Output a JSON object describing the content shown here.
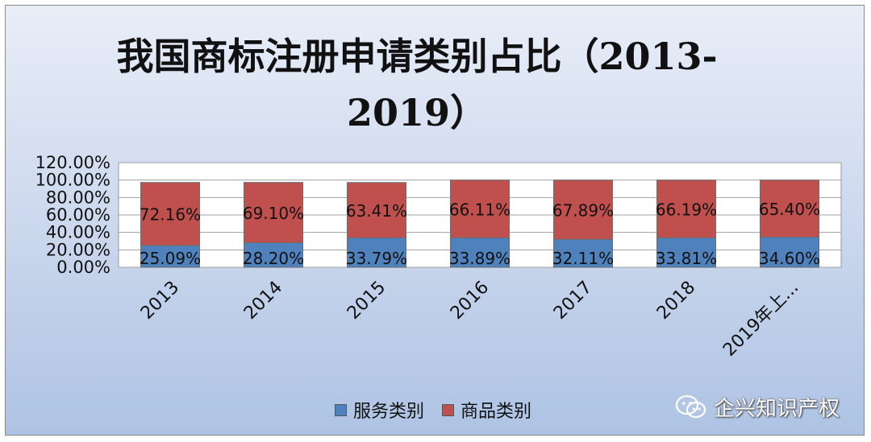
{
  "title": "我国商标注册申请类别占比（2013-2019）",
  "chart_data": {
    "type": "bar",
    "stacked": true,
    "categories": [
      "2013",
      "2014",
      "2015",
      "2016",
      "2017",
      "2018",
      "2019年上..."
    ],
    "series": [
      {
        "name": "服务类别",
        "values": [
          25.09,
          28.2,
          33.79,
          33.89,
          32.11,
          33.81,
          34.6
        ],
        "labels": [
          "25.09%",
          "28.20%",
          "33.79%",
          "33.89%",
          "32.11%",
          "33.81%",
          "34.60%"
        ],
        "color": "#4f81bd"
      },
      {
        "name": "商品类别",
        "values": [
          72.16,
          69.1,
          63.41,
          66.11,
          67.89,
          66.19,
          65.4
        ],
        "labels": [
          "72.16%",
          "69.10%",
          "63.41%",
          "66.11%",
          "67.89%",
          "66.19%",
          "65.40%"
        ],
        "color": "#c0504d"
      }
    ],
    "yticks": [
      "0.00%",
      "20.00%",
      "40.00%",
      "60.00%",
      "80.00%",
      "100.00%",
      "120.00%"
    ],
    "ylim": [
      0,
      120
    ],
    "grid": true,
    "legend_position": "bottom"
  },
  "watermark": {
    "text": "企兴知识产权",
    "icon": "wechat-icon"
  }
}
